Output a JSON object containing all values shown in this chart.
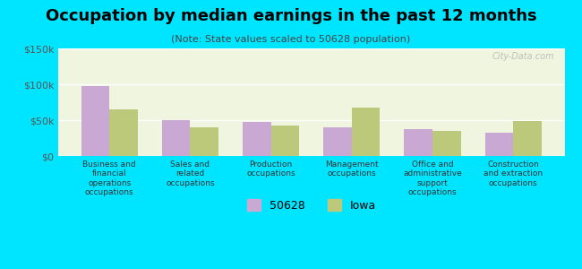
{
  "title": "Occupation by median earnings in the past 12 months",
  "subtitle": "(Note: State values scaled to 50628 population)",
  "categories": [
    "Business and\nfinancial\noperations\noccupations",
    "Sales and\nrelated\noccupations",
    "Production\noccupations",
    "Management\noccupations",
    "Office and\nadministrative\nsupport\noccupations",
    "Construction\nand extraction\noccupations"
  ],
  "values_50628": [
    97000,
    50000,
    47000,
    40000,
    38000,
    32000
  ],
  "values_iowa": [
    65000,
    40000,
    42000,
    67000,
    35000,
    49000
  ],
  "color_50628": "#c9a8d4",
  "color_iowa": "#bdc97a",
  "background_outer": "#00e5ff",
  "background_chart": "#f0f5e0",
  "background_chart_top": "#e8f5e0",
  "ylim": [
    0,
    150000
  ],
  "yticks": [
    0,
    50000,
    100000,
    150000
  ],
  "ytick_labels": [
    "$0",
    "$50k",
    "$100k",
    "$150k"
  ],
  "legend_labels": [
    "50628",
    "Iowa"
  ],
  "watermark": "City-Data.com",
  "bar_width": 0.35
}
